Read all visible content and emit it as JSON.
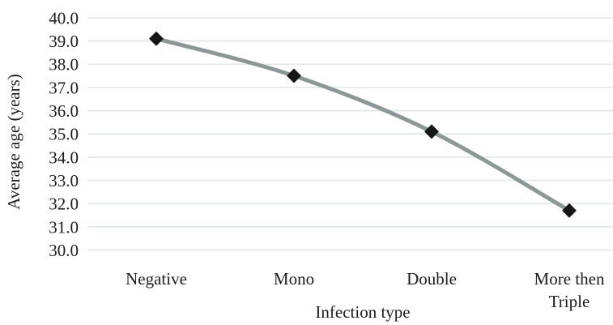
{
  "chart_data": {
    "type": "line",
    "title": "",
    "xlabel": "Infection type",
    "ylabel": "Average age (years)",
    "categories": [
      "Negative",
      "Mono",
      "Double",
      "More then\nTriple"
    ],
    "values": [
      39.1,
      37.5,
      35.1,
      31.7
    ],
    "ylim": [
      30.0,
      40.0
    ],
    "ytick_step": 1.0,
    "ytick_labels": [
      "30.0",
      "31.0",
      "32.0",
      "33.0",
      "34.0",
      "35.0",
      "36.0",
      "37.0",
      "38.0",
      "39.0",
      "40.0"
    ],
    "grid": true,
    "legend": "none",
    "marker": "diamond",
    "colors": {
      "line": "#8e9797",
      "marker": "#161616",
      "gridline": "#e2e9e8",
      "text": "#1c1c1c",
      "background": "#ffffff"
    }
  }
}
